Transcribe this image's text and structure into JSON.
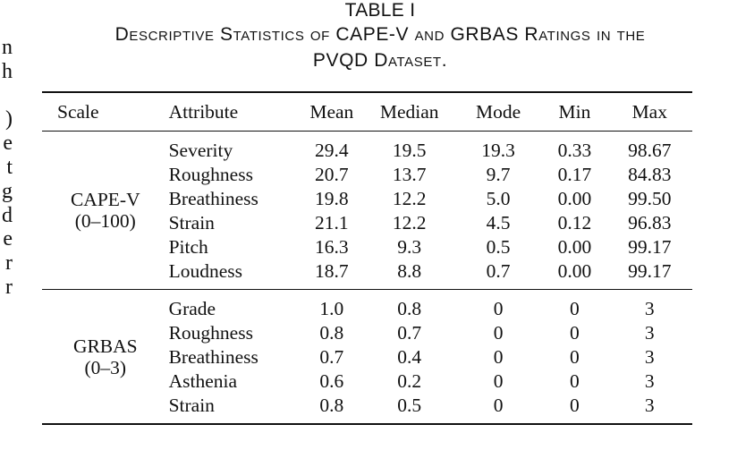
{
  "margin_fragment": [
    "n",
    "h",
    "",
    ")",
    "e",
    "t",
    "g",
    "d",
    "e",
    "r",
    "r"
  ],
  "caption": {
    "label": "TABLE I",
    "title_line1": "Descriptive Statistics of CAPE-V and GRBAS Ratings in the",
    "title_line2": "PVQD Dataset."
  },
  "table": {
    "headers": [
      "Scale",
      "Attribute",
      "Mean",
      "Median",
      "Mode",
      "Min",
      "Max"
    ],
    "groups": [
      {
        "scale_name": "CAPE-V",
        "scale_range": "(0–100)",
        "rows": [
          {
            "attribute": "Severity",
            "mean": "29.4",
            "median": "19.5",
            "mode": "19.3",
            "min": "0.33",
            "max": "98.67"
          },
          {
            "attribute": "Roughness",
            "mean": "20.7",
            "median": "13.7",
            "mode": "9.7",
            "min": "0.17",
            "max": "84.83"
          },
          {
            "attribute": "Breathiness",
            "mean": "19.8",
            "median": "12.2",
            "mode": "5.0",
            "min": "0.00",
            "max": "99.50"
          },
          {
            "attribute": "Strain",
            "mean": "21.1",
            "median": "12.2",
            "mode": "4.5",
            "min": "0.12",
            "max": "96.83"
          },
          {
            "attribute": "Pitch",
            "mean": "16.3",
            "median": "9.3",
            "mode": "0.5",
            "min": "0.00",
            "max": "99.17"
          },
          {
            "attribute": "Loudness",
            "mean": "18.7",
            "median": "8.8",
            "mode": "0.7",
            "min": "0.00",
            "max": "99.17"
          }
        ]
      },
      {
        "scale_name": "GRBAS",
        "scale_range": "(0–3)",
        "rows": [
          {
            "attribute": "Grade",
            "mean": "1.0",
            "median": "0.8",
            "mode": "0",
            "min": "0",
            "max": "3"
          },
          {
            "attribute": "Roughness",
            "mean": "0.8",
            "median": "0.7",
            "mode": "0",
            "min": "0",
            "max": "3"
          },
          {
            "attribute": "Breathiness",
            "mean": "0.7",
            "median": "0.4",
            "mode": "0",
            "min": "0",
            "max": "3"
          },
          {
            "attribute": "Asthenia",
            "mean": "0.6",
            "median": "0.2",
            "mode": "0",
            "min": "0",
            "max": "3"
          },
          {
            "attribute": "Strain",
            "mean": "0.8",
            "median": "0.5",
            "mode": "0",
            "min": "0",
            "max": "3"
          }
        ]
      }
    ]
  }
}
